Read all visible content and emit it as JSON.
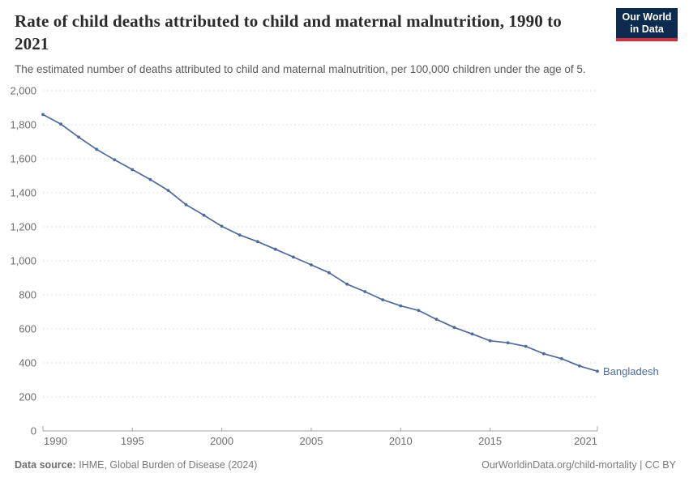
{
  "header": {
    "title": "Rate of child deaths attributed to child and maternal malnutrition, 1990 to 2021",
    "subtitle": "The estimated number of deaths attributed to child and maternal malnutrition, per 100,000 children under the age of 5."
  },
  "logo": {
    "line1": "Our World",
    "line2": "in Data",
    "bg_color": "#0d2b4e",
    "accent_color": "#cf303e"
  },
  "chart_data": {
    "type": "line",
    "title": "Rate of child deaths attributed to child and maternal malnutrition, 1990 to 2021",
    "x": [
      1990,
      1991,
      1992,
      1993,
      1994,
      1995,
      1996,
      1997,
      1998,
      1999,
      2000,
      2001,
      2002,
      2003,
      2004,
      2005,
      2006,
      2007,
      2008,
      2009,
      2010,
      2011,
      2012,
      2013,
      2014,
      2015,
      2016,
      2017,
      2018,
      2019,
      2020,
      2021
    ],
    "series": [
      {
        "name": "Bangladesh",
        "values": [
          1860,
          1804,
          1727,
          1655,
          1594,
          1536,
          1478,
          1414,
          1330,
          1268,
          1203,
          1152,
          1113,
          1068,
          1022,
          976,
          930,
          863,
          819,
          771,
          735,
          708,
          656,
          608,
          570,
          530,
          518,
          497,
          454,
          425,
          382,
          351
        ]
      }
    ],
    "ylim": [
      0,
      2000
    ],
    "yticks": [
      0,
      200,
      400,
      600,
      800,
      1000,
      1200,
      1400,
      1600,
      1800,
      2000
    ],
    "xticks": [
      1990,
      1995,
      2000,
      2005,
      2010,
      2015,
      2021
    ],
    "grid": "horizontal-dashed",
    "legend_position": "end-of-line-label",
    "line_color": "#4c6a9c",
    "grid_color": "#e0e0e0",
    "axis_color": "#a3a3a3",
    "tick_label_color": "#6e6e6e"
  },
  "footer": {
    "source_label": "Data source:",
    "source_text": " IHME, Global Burden of Disease (2024)",
    "rights": "OurWorldinData.org/child-mortality | CC BY"
  }
}
